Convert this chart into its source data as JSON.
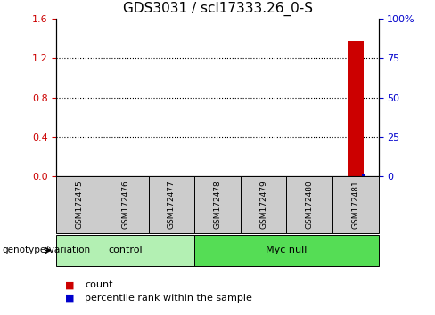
{
  "title": "GDS3031 / scl17333.26_0-S",
  "samples": [
    "GSM172475",
    "GSM172476",
    "GSM172477",
    "GSM172478",
    "GSM172479",
    "GSM172480",
    "GSM172481"
  ],
  "groups": [
    {
      "label": "control",
      "indices": [
        0,
        1,
        2
      ],
      "color": "#b3f0b3"
    },
    {
      "label": "Myc null",
      "indices": [
        3,
        4,
        5,
        6
      ],
      "color": "#55dd55"
    }
  ],
  "bar_sample_index": 6,
  "count_value": 1.38,
  "percentile_value": 2.0,
  "left_ylim": [
    0,
    1.6
  ],
  "right_ylim": [
    0,
    100
  ],
  "left_yticks": [
    0,
    0.4,
    0.8,
    1.2,
    1.6
  ],
  "right_yticks": [
    0,
    25,
    50,
    75,
    100
  ],
  "right_ytick_labels": [
    "0",
    "25",
    "50",
    "75",
    "100%"
  ],
  "count_color": "#cc0000",
  "percentile_color": "#0000cc",
  "sample_box_color": "#cccccc",
  "legend_count_label": "count",
  "legend_percentile_label": "percentile rank within the sample",
  "genotype_label": "genotype/variation",
  "title_fontsize": 11,
  "axis_fontsize": 8,
  "tick_fontsize": 8,
  "sample_fontsize": 6.5,
  "group_fontsize": 8
}
